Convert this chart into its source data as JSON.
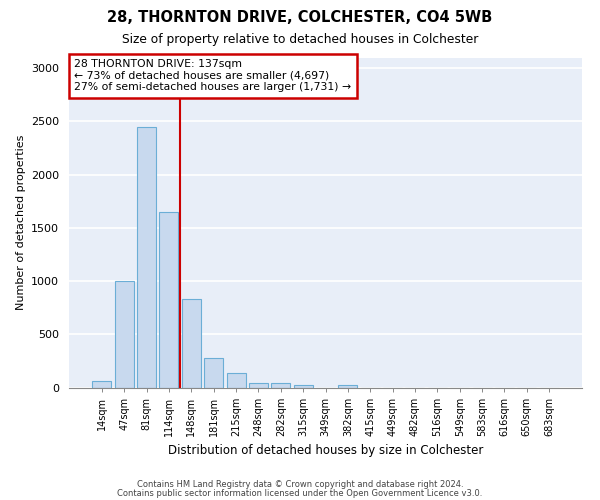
{
  "title1": "28, THORNTON DRIVE, COLCHESTER, CO4 5WB",
  "title2": "Size of property relative to detached houses in Colchester",
  "xlabel": "Distribution of detached houses by size in Colchester",
  "ylabel": "Number of detached properties",
  "bar_labels": [
    "14sqm",
    "47sqm",
    "81sqm",
    "114sqm",
    "148sqm",
    "181sqm",
    "215sqm",
    "248sqm",
    "282sqm",
    "315sqm",
    "349sqm",
    "382sqm",
    "415sqm",
    "449sqm",
    "482sqm",
    "516sqm",
    "549sqm",
    "583sqm",
    "616sqm",
    "650sqm",
    "683sqm"
  ],
  "bar_values": [
    60,
    1000,
    2450,
    1650,
    830,
    280,
    140,
    40,
    40,
    20,
    0,
    20,
    0,
    0,
    0,
    0,
    0,
    0,
    0,
    0,
    0
  ],
  "bar_color": "#c8d9ee",
  "bar_edge_color": "#6baed6",
  "property_line_x": 3.5,
  "annotation_text": "28 THORNTON DRIVE: 137sqm\n← 73% of detached houses are smaller (4,697)\n27% of semi-detached houses are larger (1,731) →",
  "annotation_box_facecolor": "#ffffff",
  "annotation_box_edgecolor": "#cc0000",
  "vline_color": "#cc0000",
  "ylim": [
    0,
    3100
  ],
  "yticks": [
    0,
    500,
    1000,
    1500,
    2000,
    2500,
    3000
  ],
  "fig_background": "#ffffff",
  "ax_background": "#e8eef8",
  "grid_color": "#ffffff",
  "footer1": "Contains HM Land Registry data © Crown copyright and database right 2024.",
  "footer2": "Contains public sector information licensed under the Open Government Licence v3.0."
}
